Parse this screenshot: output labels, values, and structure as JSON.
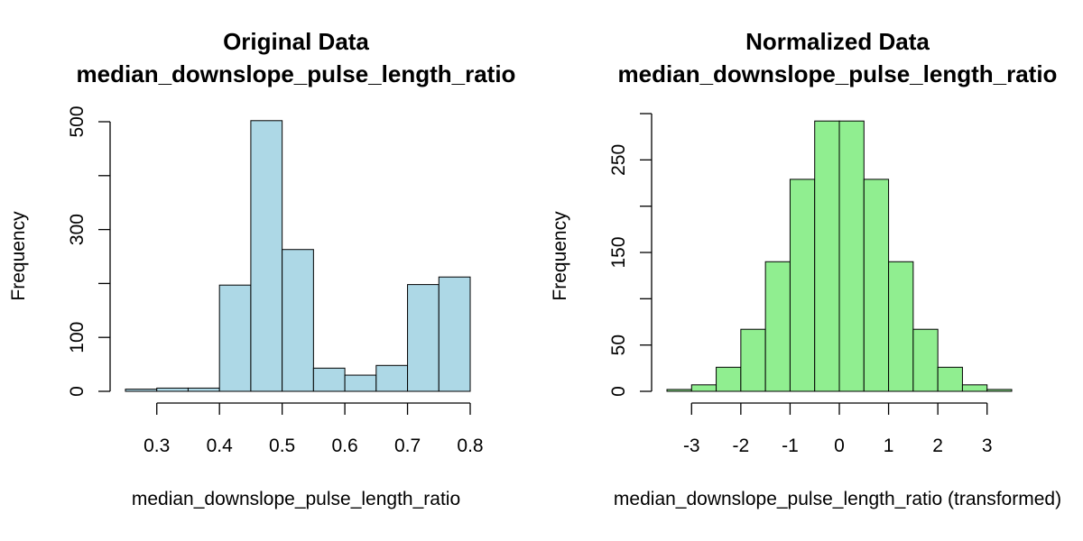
{
  "chart_data": [
    {
      "type": "bar",
      "title": "Original Data",
      "subtitle": "median_downslope_pulse_length_ratio",
      "xlabel": "median_downslope_pulse_length_ratio",
      "ylabel": "Frequency",
      "bar_color": "#add8e6",
      "xlim": [
        0.25,
        0.8
      ],
      "ylim": [
        0,
        500
      ],
      "x_ticks": [
        0.3,
        0.4,
        0.5,
        0.6,
        0.7,
        0.8
      ],
      "x_tick_labels": [
        "0.3",
        "0.4",
        "0.5",
        "0.6",
        "0.7",
        "0.8"
      ],
      "y_ticks": [
        0,
        100,
        200,
        300,
        400,
        500
      ],
      "y_tick_labels": [
        "0",
        "100",
        "",
        "300",
        "",
        "500"
      ],
      "grid": false,
      "bins": [
        {
          "x0": 0.25,
          "x1": 0.3,
          "count": 4
        },
        {
          "x0": 0.3,
          "x1": 0.35,
          "count": 6
        },
        {
          "x0": 0.35,
          "x1": 0.4,
          "count": 6
        },
        {
          "x0": 0.4,
          "x1": 0.45,
          "count": 197
        },
        {
          "x0": 0.45,
          "x1": 0.5,
          "count": 502
        },
        {
          "x0": 0.5,
          "x1": 0.55,
          "count": 263
        },
        {
          "x0": 0.55,
          "x1": 0.6,
          "count": 43
        },
        {
          "x0": 0.6,
          "x1": 0.65,
          "count": 30
        },
        {
          "x0": 0.65,
          "x1": 0.7,
          "count": 48
        },
        {
          "x0": 0.7,
          "x1": 0.75,
          "count": 198
        },
        {
          "x0": 0.75,
          "x1": 0.8,
          "count": 212
        }
      ]
    },
    {
      "type": "bar",
      "title": "Normalized Data",
      "subtitle": "median_downslope_pulse_length_ratio",
      "xlabel": "median_downslope_pulse_length_ratio (transformed)",
      "ylabel": "Frequency",
      "bar_color": "#90ee90",
      "xlim": [
        -3.5,
        3.5
      ],
      "ylim": [
        0,
        300
      ],
      "x_ticks": [
        -3,
        -2,
        -1,
        0,
        1,
        2,
        3
      ],
      "x_tick_labels": [
        "-3",
        "-2",
        "-1",
        "0",
        "1",
        "2",
        "3"
      ],
      "y_ticks": [
        0,
        50,
        100,
        150,
        200,
        250,
        300
      ],
      "y_tick_labels": [
        "0",
        "50",
        "",
        "150",
        "",
        "250",
        ""
      ],
      "grid": false,
      "bins": [
        {
          "x0": -3.5,
          "x1": -3.0,
          "count": 2
        },
        {
          "x0": -3.0,
          "x1": -2.5,
          "count": 7
        },
        {
          "x0": -2.5,
          "x1": -2.0,
          "count": 26
        },
        {
          "x0": -2.0,
          "x1": -1.5,
          "count": 67
        },
        {
          "x0": -1.5,
          "x1": -1.0,
          "count": 140
        },
        {
          "x0": -1.0,
          "x1": -0.5,
          "count": 229
        },
        {
          "x0": -0.5,
          "x1": 0.0,
          "count": 292
        },
        {
          "x0": 0.0,
          "x1": 0.5,
          "count": 292
        },
        {
          "x0": 0.5,
          "x1": 1.0,
          "count": 229
        },
        {
          "x0": 1.0,
          "x1": 1.5,
          "count": 140
        },
        {
          "x0": 1.5,
          "x1": 2.0,
          "count": 67
        },
        {
          "x0": 2.0,
          "x1": 2.5,
          "count": 26
        },
        {
          "x0": 2.5,
          "x1": 3.0,
          "count": 7
        },
        {
          "x0": 3.0,
          "x1": 3.5,
          "count": 2
        }
      ]
    }
  ]
}
